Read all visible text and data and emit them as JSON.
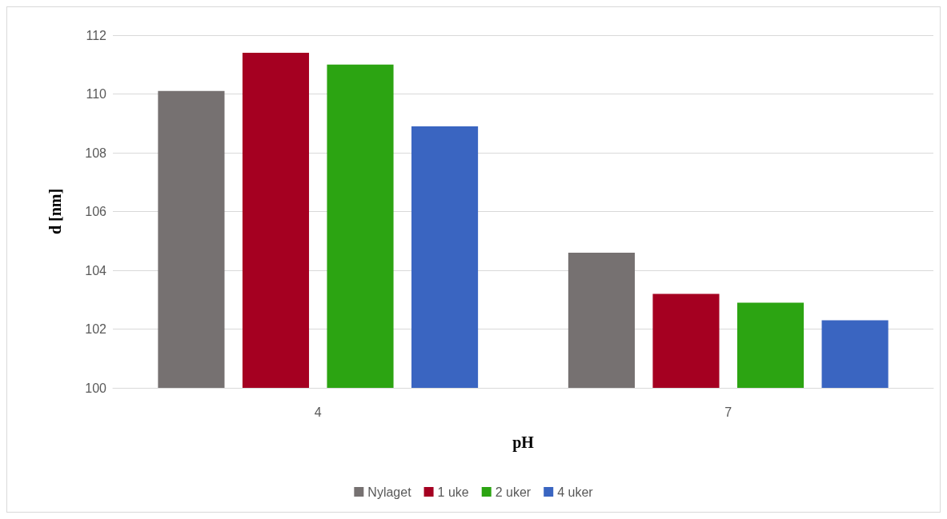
{
  "chart_data": {
    "type": "bar",
    "xlabel": "pH",
    "ylabel": "d [nm]",
    "categories": [
      "4",
      "7"
    ],
    "series": [
      {
        "name": "Nylaget",
        "color": "#767171",
        "values": [
          110.1,
          104.6
        ]
      },
      {
        "name": "1 uke",
        "color": "#a50021",
        "values": [
          111.4,
          103.2
        ]
      },
      {
        "name": "2 uker",
        "color": "#2ca412",
        "values": [
          111.0,
          102.9
        ]
      },
      {
        "name": "4 uker",
        "color": "#3a65c1",
        "values": [
          108.9,
          102.3
        ]
      }
    ],
    "ylim": [
      100,
      112
    ],
    "yticks": [
      100,
      102,
      104,
      106,
      108,
      110,
      112
    ],
    "grid": "y",
    "legend": "bottom"
  }
}
